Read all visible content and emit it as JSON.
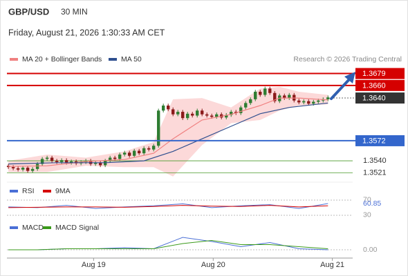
{
  "header": {
    "symbol": "GBP/USD",
    "interval": "30 MIN",
    "datetime": "Friday, August 21, 2026 1:30:33 AM CET"
  },
  "chart_data": [
    {
      "type": "candlestick",
      "credit": "Research © 2026 Trading Central",
      "xlim": [
        -0.3,
        71.1
      ],
      "ylim": [
        1.3506,
        1.3695
      ],
      "up_color": "#2e7d32",
      "down_color": "#8b1a1a",
      "candles": [
        [
          1.3532,
          1.3535,
          1.3527,
          1.353
        ],
        [
          1.353,
          1.3533,
          1.3525,
          1.3528
        ],
        [
          1.3528,
          1.3531,
          1.3523,
          1.3526
        ],
        [
          1.3526,
          1.3532,
          1.3523,
          1.3529
        ],
        [
          1.3529,
          1.3532,
          1.3521,
          1.3524
        ],
        [
          1.3524,
          1.353,
          1.3521,
          1.3527
        ],
        [
          1.3527,
          1.3538,
          1.3524,
          1.3535
        ],
        [
          1.3535,
          1.3546,
          1.3532,
          1.3543
        ],
        [
          1.3543,
          1.3548,
          1.354,
          1.3545
        ],
        [
          1.3545,
          1.3548,
          1.3537,
          1.354
        ],
        [
          1.354,
          1.3543,
          1.3535,
          1.3538
        ],
        [
          1.3538,
          1.3544,
          1.3535,
          1.3541
        ],
        [
          1.3541,
          1.3544,
          1.3534,
          1.3537
        ],
        [
          1.3537,
          1.3542,
          1.3534,
          1.3539
        ],
        [
          1.3539,
          1.3542,
          1.3533,
          1.3536
        ],
        [
          1.3536,
          1.3541,
          1.3533,
          1.3538
        ],
        [
          1.3538,
          1.3543,
          1.3535,
          1.354
        ],
        [
          1.354,
          1.3543,
          1.3532,
          1.3535
        ],
        [
          1.3535,
          1.354,
          1.3532,
          1.3537
        ],
        [
          1.3537,
          1.354,
          1.353,
          1.3533
        ],
        [
          1.3533,
          1.3543,
          1.353,
          1.354
        ],
        [
          1.354,
          1.3548,
          1.3537,
          1.3545
        ],
        [
          1.3545,
          1.3548,
          1.354,
          1.3543
        ],
        [
          1.3543,
          1.3553,
          1.354,
          1.355
        ],
        [
          1.355,
          1.3556,
          1.3547,
          1.3553
        ],
        [
          1.3553,
          1.3556,
          1.3545,
          1.3548
        ],
        [
          1.3548,
          1.3559,
          1.3545,
          1.3556
        ],
        [
          1.3556,
          1.3559,
          1.3549,
          1.3552
        ],
        [
          1.3552,
          1.3563,
          1.3549,
          1.356
        ],
        [
          1.356,
          1.3563,
          1.3555,
          1.3558
        ],
        [
          1.3558,
          1.3567,
          1.3555,
          1.3564
        ],
        [
          1.3564,
          1.3623,
          1.3561,
          1.362
        ],
        [
          1.362,
          1.3631,
          1.3617,
          1.3628
        ],
        [
          1.3628,
          1.3631,
          1.3619,
          1.3622
        ],
        [
          1.3622,
          1.3625,
          1.3611,
          1.3614
        ],
        [
          1.3614,
          1.3621,
          1.3611,
          1.3618
        ],
        [
          1.3618,
          1.3621,
          1.3605,
          1.3608
        ],
        [
          1.3608,
          1.3618,
          1.3605,
          1.3615
        ],
        [
          1.3615,
          1.3618,
          1.3609,
          1.3612
        ],
        [
          1.3612,
          1.3623,
          1.3609,
          1.362
        ],
        [
          1.362,
          1.3623,
          1.3611,
          1.3614
        ],
        [
          1.3614,
          1.3617,
          1.3609,
          1.3612
        ],
        [
          1.3612,
          1.3615,
          1.3607,
          1.361
        ],
        [
          1.361,
          1.3617,
          1.3607,
          1.3614
        ],
        [
          1.3614,
          1.3617,
          1.3606,
          1.3609
        ],
        [
          1.3609,
          1.3616,
          1.3606,
          1.3613
        ],
        [
          1.3613,
          1.3621,
          1.361,
          1.3618
        ],
        [
          1.3618,
          1.3621,
          1.3613,
          1.3616
        ],
        [
          1.3616,
          1.3628,
          1.3613,
          1.3625
        ],
        [
          1.3625,
          1.3635,
          1.3622,
          1.3632
        ],
        [
          1.3632,
          1.3641,
          1.3629,
          1.3638
        ],
        [
          1.3638,
          1.3653,
          1.3635,
          1.365
        ],
        [
          1.365,
          1.3653,
          1.3642,
          1.3645
        ],
        [
          1.3645,
          1.3658,
          1.3642,
          1.3655
        ],
        [
          1.3655,
          1.3658,
          1.3645,
          1.3648
        ],
        [
          1.3648,
          1.3651,
          1.3632,
          1.3635
        ],
        [
          1.3635,
          1.3647,
          1.3632,
          1.3644
        ],
        [
          1.3644,
          1.3647,
          1.3637,
          1.364
        ],
        [
          1.364,
          1.3648,
          1.3637,
          1.3645
        ],
        [
          1.3645,
          1.3648,
          1.3633,
          1.3636
        ],
        [
          1.3636,
          1.3639,
          1.363,
          1.3633
        ],
        [
          1.3633,
          1.3638,
          1.363,
          1.3635
        ],
        [
          1.3635,
          1.3638,
          1.3628,
          1.3631
        ],
        [
          1.3631,
          1.3637,
          1.3628,
          1.3634
        ],
        [
          1.3634,
          1.3639,
          1.3631,
          1.3636
        ],
        [
          1.3636,
          1.3641,
          1.3633,
          1.3638
        ],
        [
          1.3638,
          1.3644,
          1.3635,
          1.3641
        ]
      ],
      "overlays": [
        {
          "name": "MA 20 + Bollinger Bands",
          "color": "#f08080",
          "band_color": "#fcd9d9",
          "x": [
            0,
            8,
            16,
            24,
            30,
            34,
            40,
            46,
            52,
            56,
            60,
            66
          ],
          "values": [
            1.3531,
            1.3532,
            1.3539,
            1.3542,
            1.3552,
            1.3575,
            1.3605,
            1.3614,
            1.3628,
            1.364,
            1.364,
            1.3637
          ],
          "upper": [
            1.354,
            1.355,
            1.3545,
            1.3555,
            1.357,
            1.3638,
            1.364,
            1.3625,
            1.3655,
            1.3658,
            1.365,
            1.3645
          ],
          "lower": [
            1.3522,
            1.3522,
            1.3532,
            1.353,
            1.353,
            1.3515,
            1.3565,
            1.36,
            1.3605,
            1.362,
            1.3628,
            1.363
          ]
        },
        {
          "name": "MA 50",
          "color": "#2f4f8f",
          "x": [
            0,
            10,
            20,
            28,
            34,
            40,
            46,
            52,
            58,
            66
          ],
          "values": [
            1.3535,
            1.3537,
            1.3537,
            1.354,
            1.3555,
            1.3575,
            1.3595,
            1.3615,
            1.3625,
            1.3632
          ]
        }
      ],
      "levels": [
        {
          "value": 1.3679,
          "label": "1.3679",
          "color": "#d50000",
          "box": true,
          "dotted": false
        },
        {
          "value": 1.366,
          "label": "1.3660",
          "color": "#d50000",
          "box": true,
          "dotted": false
        },
        {
          "value": 1.364,
          "label": "1.3640",
          "color": "#333333",
          "box": true,
          "dotted": true
        },
        {
          "value": 1.3572,
          "label": "1.3572",
          "color": "#3366cc",
          "box": true,
          "dotted": false
        },
        {
          "value": 1.354,
          "label": "1.3540",
          "color": "#4a9a2a",
          "box": false,
          "dotted": false
        },
        {
          "value": 1.3521,
          "label": "1.3521",
          "color": "#4a9a2a",
          "box": false,
          "dotted": false
        }
      ],
      "xticks": [
        {
          "value": 17.6,
          "label": "Aug 19"
        },
        {
          "value": 42.3,
          "label": "Aug 20"
        },
        {
          "value": 66.9,
          "label": "Aug 21"
        }
      ]
    },
    {
      "type": "line",
      "xlim": [
        -0.3,
        71.1
      ],
      "ylim": [
        19,
        79
      ],
      "yticks": [
        70,
        30
      ],
      "series": [
        {
          "name": "RSI",
          "color": "#4a6fd6",
          "x": [
            0,
            6,
            12,
            18,
            24,
            30,
            36,
            42,
            48,
            54,
            60,
            66
          ],
          "values": [
            52,
            50,
            56,
            48,
            52,
            55,
            60,
            50,
            55,
            58,
            48,
            60.85
          ]
        },
        {
          "name": "9MA",
          "color": "#d50000",
          "x": [
            0,
            6,
            12,
            18,
            24,
            30,
            36,
            42,
            48,
            54,
            60,
            66
          ],
          "values": [
            50,
            51,
            52,
            52,
            51,
            53,
            56,
            54,
            53,
            56,
            52,
            55
          ]
        }
      ]
    },
    {
      "type": "line",
      "xlim": [
        -0.3,
        71.1
      ],
      "ylim": [
        -0.0008,
        0.0016
      ],
      "yticks": [
        {
          "value": 0,
          "label": "0.00"
        }
      ],
      "series": [
        {
          "name": "MACD",
          "color": "#4a6fd6",
          "x": [
            0,
            6,
            12,
            18,
            24,
            30,
            36,
            42,
            48,
            54,
            60,
            66
          ],
          "values": [
            0,
            0,
            0.0001,
            0.0001,
            0.0002,
            0.0001,
            0.0012,
            0.0008,
            0.0003,
            0.0007,
            0.0001,
            0
          ]
        },
        {
          "name": "MACD Signal",
          "color": "#3a9a1a",
          "x": [
            0,
            6,
            12,
            18,
            24,
            30,
            36,
            42,
            48,
            54,
            60,
            66
          ],
          "values": [
            0,
            0,
            0.0001,
            0.0001,
            0.0001,
            0.0001,
            0.0006,
            0.0009,
            0.0005,
            0.0005,
            0.0003,
            0.0001
          ]
        }
      ]
    }
  ]
}
